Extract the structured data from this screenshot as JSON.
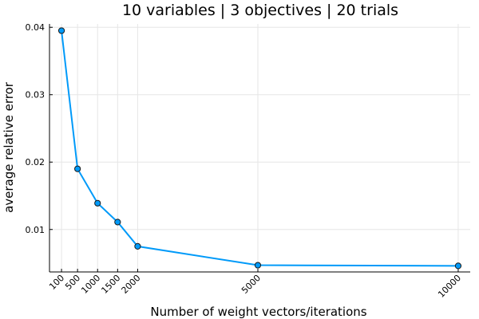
{
  "chart_data": {
    "type": "line",
    "title": "10 variables | 3 objectives | 20 trials",
    "xlabel": "Number of weight vectors/iterations",
    "ylabel": "average relative error",
    "x": [
      100,
      500,
      1000,
      1500,
      2000,
      5000,
      10000
    ],
    "series": [
      {
        "values": [
          0.0395,
          0.019,
          0.0139,
          0.0111,
          0.0075,
          0.0047,
          0.0046
        ]
      }
    ],
    "xticks": [
      100,
      500,
      1000,
      1500,
      2000,
      5000,
      10000
    ],
    "xtick_labels": [
      "100",
      "500",
      "1000",
      "1500",
      "2000",
      "5000",
      "10000"
    ],
    "yticks": [
      0.01,
      0.02,
      0.03,
      0.04
    ],
    "ytick_labels": [
      "0.01",
      "0.02",
      "0.03",
      "0.04"
    ],
    "xlim": [
      -200,
      10300
    ],
    "ylim": [
      0.0037,
      0.0405
    ],
    "grid": true,
    "legend": "none",
    "colors": {
      "series": "#009af9",
      "marker_edge": "#1a1a1a",
      "grid": "#e6e6e6"
    }
  }
}
